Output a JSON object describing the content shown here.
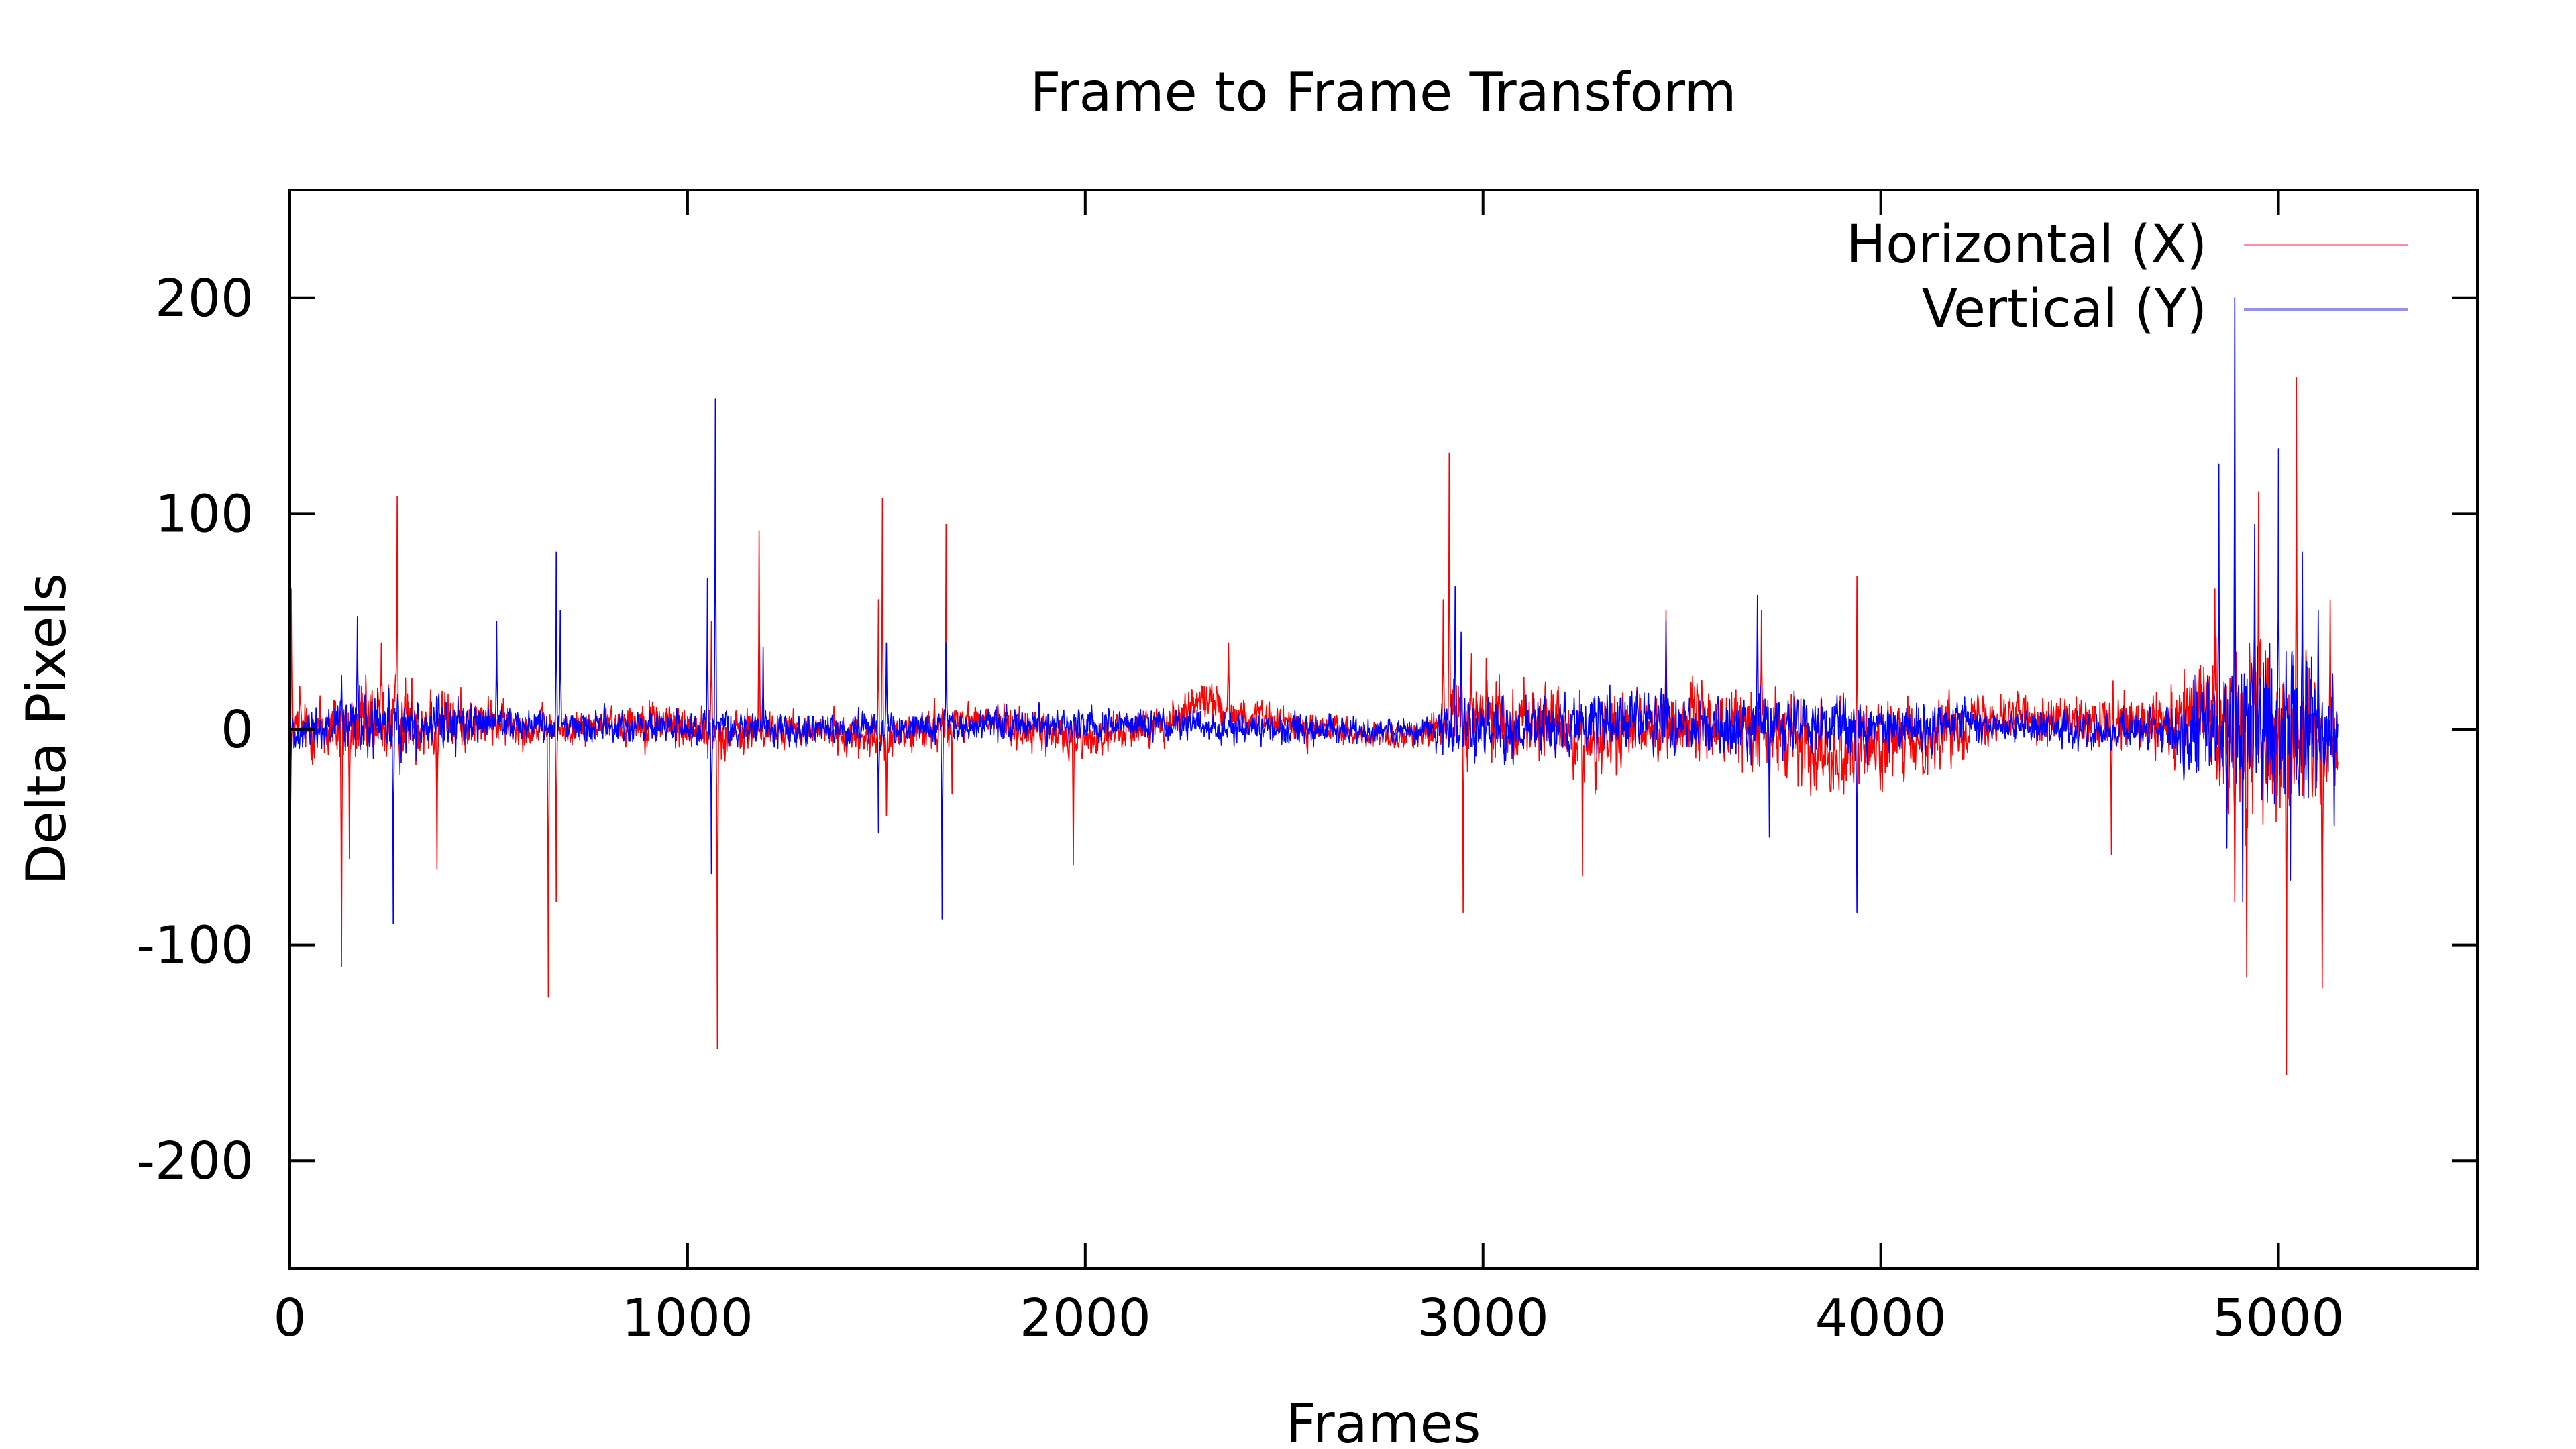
{
  "chart_data": {
    "type": "line",
    "title": "Frame to Frame Transform",
    "xlabel": "Frames",
    "ylabel": "Delta Pixels",
    "xlim": [
      0,
      5500
    ],
    "ylim": [
      -250,
      250
    ],
    "x_ticks": [
      0,
      1000,
      2000,
      3000,
      4000,
      5000
    ],
    "y_ticks": [
      -200,
      -100,
      0,
      100,
      200
    ],
    "grid": false,
    "legend_position": "top-right",
    "frame_count": 5150,
    "series": [
      {
        "name": "Horizontal (X)",
        "color": "#ff0000",
        "legend_color": "#ff8fa3",
        "baseline": [
          [
            0,
            0
          ],
          [
            100,
            0
          ],
          [
            300,
            5
          ],
          [
            500,
            3
          ],
          [
            700,
            0
          ],
          [
            900,
            4
          ],
          [
            1100,
            -2
          ],
          [
            1300,
            0
          ],
          [
            1500,
            -5
          ],
          [
            1700,
            5
          ],
          [
            2000,
            -5
          ],
          [
            2200,
            3
          ],
          [
            2300,
            15
          ],
          [
            2400,
            5
          ],
          [
            2600,
            0
          ],
          [
            2800,
            -5
          ],
          [
            2900,
            5
          ],
          [
            3100,
            5
          ],
          [
            3300,
            -5
          ],
          [
            3500,
            3
          ],
          [
            3700,
            0
          ],
          [
            3900,
            -10
          ],
          [
            4100,
            -5
          ],
          [
            4300,
            8
          ],
          [
            4500,
            3
          ],
          [
            4700,
            0
          ],
          [
            4800,
            8
          ],
          [
            5000,
            0
          ],
          [
            5150,
            -5
          ]
        ],
        "amplitude": [
          [
            0,
            8
          ],
          [
            150,
            14
          ],
          [
            300,
            14
          ],
          [
            500,
            8
          ],
          [
            700,
            5
          ],
          [
            900,
            8
          ],
          [
            1100,
            8
          ],
          [
            1300,
            5
          ],
          [
            1500,
            8
          ],
          [
            1700,
            6
          ],
          [
            1900,
            7
          ],
          [
            2100,
            6
          ],
          [
            2300,
            7
          ],
          [
            2500,
            6
          ],
          [
            2700,
            4
          ],
          [
            2850,
            5
          ],
          [
            2950,
            16
          ],
          [
            3100,
            12
          ],
          [
            3300,
            14
          ],
          [
            3500,
            12
          ],
          [
            3700,
            14
          ],
          [
            3900,
            15
          ],
          [
            4100,
            12
          ],
          [
            4300,
            8
          ],
          [
            4500,
            8
          ],
          [
            4700,
            12
          ],
          [
            4850,
            24
          ],
          [
            4950,
            32
          ],
          [
            5050,
            30
          ],
          [
            5150,
            14
          ]
        ],
        "spikes": [
          [
            5,
            65
          ],
          [
            25,
            20
          ],
          [
            130,
            -110
          ],
          [
            150,
            -60
          ],
          [
            230,
            40
          ],
          [
            270,
            108
          ],
          [
            370,
            -65
          ],
          [
            650,
            -124
          ],
          [
            670,
            -80
          ],
          [
            1060,
            50
          ],
          [
            1075,
            -148
          ],
          [
            1180,
            92
          ],
          [
            1480,
            60
          ],
          [
            1490,
            107
          ],
          [
            1500,
            -40
          ],
          [
            1650,
            95
          ],
          [
            1665,
            -30
          ],
          [
            1970,
            -63
          ],
          [
            2360,
            40
          ],
          [
            2900,
            60
          ],
          [
            2915,
            128
          ],
          [
            2950,
            -85
          ],
          [
            3250,
            -68
          ],
          [
            3460,
            55
          ],
          [
            3700,
            55
          ],
          [
            3940,
            71
          ],
          [
            4580,
            -58
          ],
          [
            4840,
            65
          ],
          [
            4890,
            -80
          ],
          [
            4920,
            -115
          ],
          [
            4950,
            110
          ],
          [
            5020,
            -160
          ],
          [
            5045,
            163
          ],
          [
            5110,
            -120
          ],
          [
            5130,
            60
          ]
        ]
      },
      {
        "name": "Vertical (Y)",
        "color": "#0000ff",
        "legend_color": "#8f8fff",
        "baseline": [
          [
            0,
            0
          ],
          [
            500,
            3
          ],
          [
            1000,
            0
          ],
          [
            1500,
            0
          ],
          [
            2000,
            3
          ],
          [
            2500,
            0
          ],
          [
            3000,
            0
          ],
          [
            3500,
            3
          ],
          [
            4000,
            0
          ],
          [
            4200,
            3
          ],
          [
            4500,
            0
          ],
          [
            4800,
            0
          ],
          [
            5150,
            0
          ]
        ],
        "amplitude": [
          [
            0,
            5
          ],
          [
            150,
            10
          ],
          [
            300,
            10
          ],
          [
            500,
            6
          ],
          [
            700,
            5
          ],
          [
            900,
            6
          ],
          [
            1100,
            6
          ],
          [
            1300,
            5
          ],
          [
            1500,
            5
          ],
          [
            1700,
            5
          ],
          [
            1900,
            6
          ],
          [
            2100,
            5
          ],
          [
            2300,
            5
          ],
          [
            2500,
            5
          ],
          [
            2700,
            4
          ],
          [
            2850,
            4
          ],
          [
            2950,
            12
          ],
          [
            3100,
            10
          ],
          [
            3300,
            10
          ],
          [
            3500,
            10
          ],
          [
            3700,
            10
          ],
          [
            3900,
            10
          ],
          [
            4100,
            8
          ],
          [
            4300,
            5
          ],
          [
            4500,
            6
          ],
          [
            4700,
            8
          ],
          [
            4850,
            22
          ],
          [
            4950,
            30
          ],
          [
            5050,
            28
          ],
          [
            5150,
            12
          ]
        ],
        "spikes": [
          [
            2,
            -35
          ],
          [
            130,
            25
          ],
          [
            170,
            52
          ],
          [
            260,
            -90
          ],
          [
            520,
            50
          ],
          [
            670,
            82
          ],
          [
            680,
            55
          ],
          [
            1050,
            70
          ],
          [
            1060,
            -67
          ],
          [
            1070,
            153
          ],
          [
            1190,
            38
          ],
          [
            1480,
            -48
          ],
          [
            1500,
            40
          ],
          [
            1640,
            -88
          ],
          [
            1650,
            40
          ],
          [
            2930,
            66
          ],
          [
            2945,
            45
          ],
          [
            3460,
            50
          ],
          [
            3690,
            62
          ],
          [
            3720,
            -50
          ],
          [
            3940,
            -85
          ],
          [
            4850,
            123
          ],
          [
            4870,
            -55
          ],
          [
            4890,
            200
          ],
          [
            4910,
            -80
          ],
          [
            4940,
            95
          ],
          [
            5000,
            130
          ],
          [
            5030,
            -70
          ],
          [
            5060,
            82
          ],
          [
            5100,
            55
          ],
          [
            5140,
            -45
          ]
        ]
      }
    ]
  }
}
